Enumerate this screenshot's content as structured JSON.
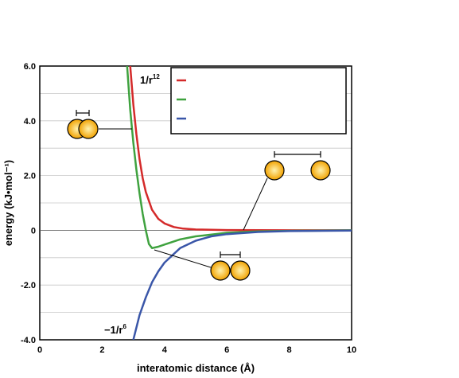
{
  "chart_data": {
    "type": "line",
    "xlabel": "interatomic distance (Å)",
    "ylabel": "energy (kJ•mol⁻¹)",
    "xlim": [
      0,
      10
    ],
    "ylim": [
      -4,
      6
    ],
    "x_ticks": [
      "0",
      "2",
      "4",
      "6",
      "8",
      "10"
    ],
    "y_ticks": [
      "-4.0",
      "-2.0",
      "0",
      "2.0",
      "4.0",
      "6.0"
    ],
    "grid": "horizontal",
    "legend": {
      "placement": "top-right",
      "entries": [
        "",
        "",
        ""
      ]
    },
    "series": [
      {
        "name": "",
        "color": "#d42a2a",
        "points": [
          [
            2.9,
            6.0
          ],
          [
            3.0,
            4.6
          ],
          [
            3.1,
            3.5
          ],
          [
            3.2,
            2.6
          ],
          [
            3.3,
            1.9
          ],
          [
            3.4,
            1.4
          ],
          [
            3.6,
            0.75
          ],
          [
            3.8,
            0.42
          ],
          [
            4.0,
            0.25
          ],
          [
            4.3,
            0.12
          ],
          [
            4.6,
            0.06
          ],
          [
            5.0,
            0.03
          ],
          [
            6.0,
            0.01
          ],
          [
            8.0,
            0.0
          ],
          [
            10.0,
            0.0
          ]
        ]
      },
      {
        "name": "",
        "color": "#3fa23f",
        "points": [
          [
            2.8,
            6.0
          ],
          [
            2.9,
            4.4
          ],
          [
            3.0,
            3.2
          ],
          [
            3.1,
            2.2
          ],
          [
            3.2,
            1.35
          ],
          [
            3.3,
            0.6
          ],
          [
            3.4,
            0.0
          ],
          [
            3.5,
            -0.5
          ],
          [
            3.6,
            -0.65
          ],
          [
            3.8,
            -0.6
          ],
          [
            4.0,
            -0.52
          ],
          [
            4.5,
            -0.33
          ],
          [
            5.0,
            -0.22
          ],
          [
            6.0,
            -0.09
          ],
          [
            7.0,
            -0.04
          ],
          [
            8.0,
            -0.02
          ],
          [
            10.0,
            0.0
          ]
        ]
      },
      {
        "name": "",
        "color": "#3a56a8",
        "points": [
          [
            3.0,
            -4.0
          ],
          [
            3.2,
            -3.1
          ],
          [
            3.4,
            -2.45
          ],
          [
            3.6,
            -1.9
          ],
          [
            3.8,
            -1.5
          ],
          [
            4.0,
            -1.18
          ],
          [
            4.5,
            -0.65
          ],
          [
            5.0,
            -0.38
          ],
          [
            5.5,
            -0.22
          ],
          [
            6.0,
            -0.14
          ],
          [
            7.0,
            -0.06
          ],
          [
            8.0,
            -0.03
          ],
          [
            10.0,
            -0.01
          ]
        ]
      }
    ],
    "annotations": {
      "repulsive_label_base": "1/r",
      "repulsive_label_exp": "12",
      "attractive_label_base": "−1/r",
      "attractive_label_exp": "6"
    },
    "colors": {
      "atom_fill_center": "#fff3b0",
      "atom_fill_edge": "#f2a200",
      "grid": "#c8c8c8"
    }
  }
}
